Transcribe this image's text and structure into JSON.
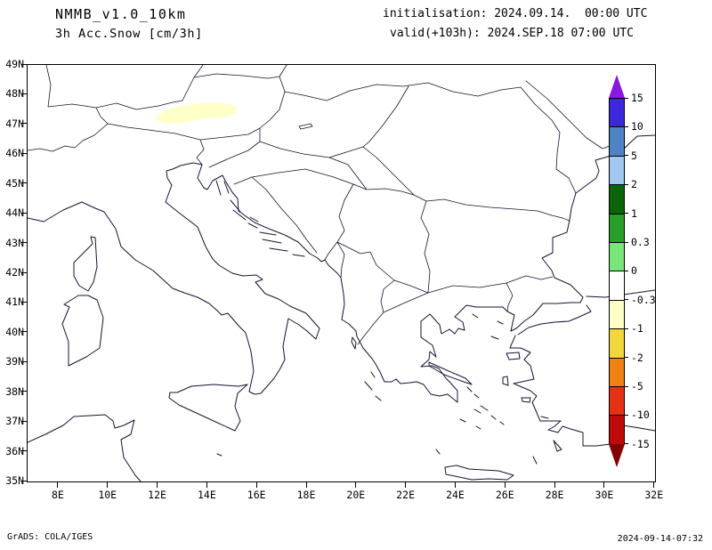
{
  "header": {
    "model": "NMMB_v1.0_10km",
    "field": "3h Acc.Snow [cm/3h]",
    "init_line": "initialisation: 2024.09.14.  00:00 UTC",
    "valid_line": "valid(+103h): 2024.SEP.18 07:00 UTC"
  },
  "footer": {
    "credit": "GrADS: COLA/IGES",
    "timestamp": "2024-09-14-07:32"
  },
  "map": {
    "lat_labels": [
      "49N",
      "48N",
      "47N",
      "46N",
      "45N",
      "44N",
      "43N",
      "42N",
      "41N",
      "40N",
      "39N",
      "38N",
      "37N",
      "36N",
      "35N"
    ],
    "lon_labels": [
      "8E",
      "10E",
      "12E",
      "14E",
      "16E",
      "18E",
      "20E",
      "22E",
      "24E",
      "26E",
      "28E",
      "30E",
      "32E"
    ],
    "line_color": "#141432",
    "snow_patch_color": "#ffffc8"
  },
  "colorbar": {
    "labels": [
      "15",
      "10",
      "5",
      "2",
      "1",
      "0.3",
      "0",
      "-0.3",
      "-1",
      "-2",
      "-5",
      "-10",
      "-15"
    ],
    "segment_colors": [
      "#3c28dc",
      "#5082c8",
      "#a0c8f0",
      "#0a640a",
      "#28a028",
      "#78e678",
      "#ffffff",
      "#ffffc8",
      "#f0d73c",
      "#f08214",
      "#e63214",
      "#be0a0a"
    ],
    "arrow_top_color": "#8a19e0",
    "arrow_bottom_color": "#820000"
  },
  "chart_data": {
    "type": "map",
    "title": "3h Acc.Snow [cm/3h]",
    "model": "NMMB_v1.0_10km",
    "initialisation": "2024.09.14. 00:00 UTC",
    "valid": "2024.SEP.18 07:00 UTC (+103h)",
    "units": "cm/3h",
    "lon_range_deg_east": [
      8,
      32
    ],
    "lat_range_deg_north": [
      35,
      49
    ],
    "lat_tick_step_deg": 1,
    "lon_tick_step_deg": 2,
    "colorbar_levels": [
      15,
      10,
      5,
      2,
      1,
      0.3,
      0,
      -0.3,
      -1,
      -2,
      -5,
      -10,
      -15
    ],
    "features": [
      {
        "name": "light accumulation patch over Eastern Alps",
        "approx_lon_deg_east": [
          12.5,
          16
        ],
        "approx_lat_deg_north": [
          46.9,
          47.6
        ],
        "color": "#ffffc8"
      }
    ]
  }
}
